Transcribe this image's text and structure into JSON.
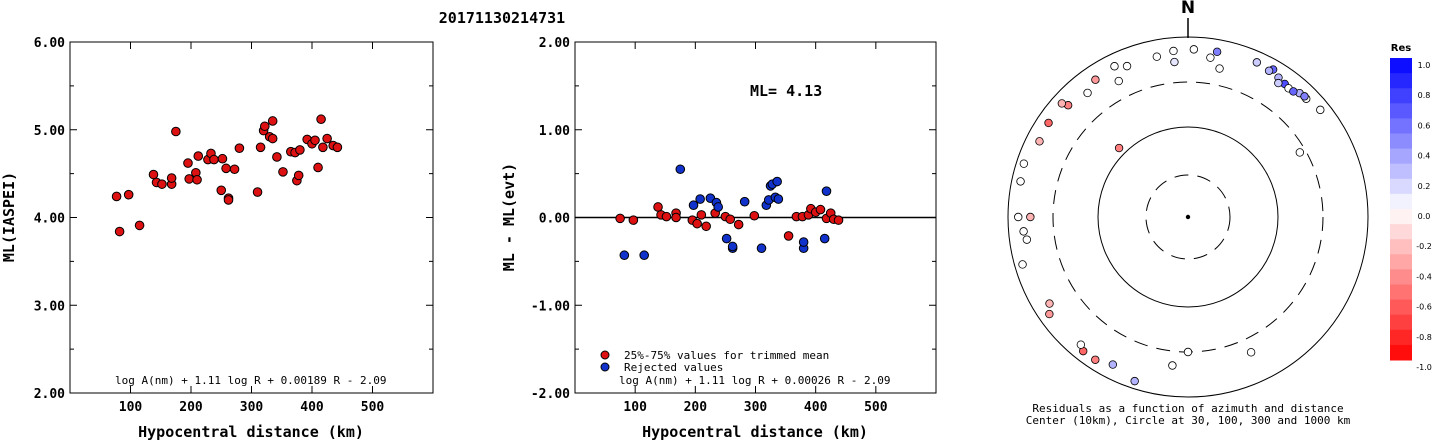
{
  "page": {
    "title": "20171130214731"
  },
  "chart_data": [
    {
      "type": "scatter",
      "id": "ml-vs-distance",
      "xlabel": "Hypocentral distance (km)",
      "ylabel": "ML(IASPEI)",
      "xlim": [
        0,
        600
      ],
      "ylim": [
        2.0,
        6.0
      ],
      "xticks": [
        "100",
        "200",
        "300",
        "400",
        "500"
      ],
      "yticks": [
        "2.00",
        "3.00",
        "4.00",
        "5.00",
        "6.00"
      ],
      "formula": "log A(nm) + 1.11 log R + 0.00189 R - 2.09",
      "marker_color": "#dd1111",
      "points": [
        [
          77,
          4.24
        ],
        [
          82,
          3.84
        ],
        [
          97,
          4.26
        ],
        [
          115,
          3.91
        ],
        [
          138,
          4.49
        ],
        [
          143,
          4.4
        ],
        [
          152,
          4.38
        ],
        [
          168,
          4.38
        ],
        [
          168,
          4.45
        ],
        [
          175,
          4.98
        ],
        [
          195,
          4.62
        ],
        [
          197,
          4.44
        ],
        [
          208,
          4.51
        ],
        [
          210,
          4.43
        ],
        [
          212,
          4.7
        ],
        [
          228,
          4.66
        ],
        [
          233,
          4.73
        ],
        [
          238,
          4.66
        ],
        [
          250,
          4.31
        ],
        [
          252,
          4.67
        ],
        [
          258,
          4.56
        ],
        [
          262,
          4.22
        ],
        [
          262,
          4.2
        ],
        [
          272,
          4.55
        ],
        [
          280,
          4.79
        ],
        [
          310,
          4.29
        ],
        [
          315,
          4.8
        ],
        [
          320,
          4.99
        ],
        [
          322,
          5.04
        ],
        [
          330,
          4.92
        ],
        [
          335,
          5.1
        ],
        [
          335,
          4.9
        ],
        [
          342,
          4.69
        ],
        [
          352,
          4.52
        ],
        [
          365,
          4.75
        ],
        [
          372,
          4.74
        ],
        [
          375,
          4.42
        ],
        [
          378,
          4.48
        ],
        [
          380,
          4.77
        ],
        [
          392,
          4.89
        ],
        [
          400,
          4.84
        ],
        [
          405,
          4.88
        ],
        [
          410,
          4.57
        ],
        [
          415,
          5.12
        ],
        [
          418,
          4.8
        ],
        [
          425,
          4.9
        ],
        [
          435,
          4.82
        ],
        [
          442,
          4.8
        ]
      ]
    },
    {
      "type": "scatter",
      "id": "residual-vs-distance",
      "xlabel": "Hypocentral distance (km)",
      "ylabel": "ML - ML(evt)",
      "xlim": [
        0,
        600
      ],
      "ylim": [
        -2.0,
        2.0
      ],
      "xticks": [
        "100",
        "200",
        "300",
        "400",
        "500"
      ],
      "yticks": [
        "-2.00",
        "-1.00",
        "0.00",
        "1.00",
        "2.00"
      ],
      "annotation": "ML= 4.13",
      "legend": [
        {
          "label": "25%-75% values for trimmed mean",
          "color": "#dd1111"
        },
        {
          "label": "Rejected values",
          "color": "#1133cc"
        }
      ],
      "formula": "log A(nm) + 1.11 log R + 0.00026 R - 2.09",
      "series": [
        {
          "name": "25%-75% values for trimmed mean",
          "color": "#dd1111",
          "points": [
            [
              75,
              -0.01
            ],
            [
              97,
              -0.03
            ],
            [
              138,
              0.12
            ],
            [
              143,
              0.03
            ],
            [
              152,
              0.01
            ],
            [
              168,
              0.05
            ],
            [
              168,
              0.0
            ],
            [
              195,
              -0.03
            ],
            [
              203,
              -0.07
            ],
            [
              210,
              0.03
            ],
            [
              218,
              -0.1
            ],
            [
              233,
              0.05
            ],
            [
              250,
              0.01
            ],
            [
              258,
              -0.02
            ],
            [
              272,
              -0.08
            ],
            [
              298,
              0.02
            ],
            [
              355,
              -0.21
            ],
            [
              368,
              0.01
            ],
            [
              378,
              0.01
            ],
            [
              388,
              0.03
            ],
            [
              392,
              0.1
            ],
            [
              400,
              0.06
            ],
            [
              408,
              0.09
            ],
            [
              418,
              -0.01
            ],
            [
              425,
              0.05
            ],
            [
              430,
              -0.02
            ],
            [
              438,
              -0.03
            ]
          ]
        },
        {
          "name": "Rejected values",
          "color": "#1133cc",
          "points": [
            [
              82,
              -0.43
            ],
            [
              115,
              -0.43
            ],
            [
              175,
              0.55
            ],
            [
              197,
              0.14
            ],
            [
              208,
              0.21
            ],
            [
              225,
              0.22
            ],
            [
              235,
              0.17
            ],
            [
              238,
              0.12
            ],
            [
              252,
              -0.24
            ],
            [
              262,
              -0.35
            ],
            [
              262,
              -0.33
            ],
            [
              282,
              0.18
            ],
            [
              310,
              -0.35
            ],
            [
              318,
              0.14
            ],
            [
              322,
              0.2
            ],
            [
              325,
              0.36
            ],
            [
              328,
              0.38
            ],
            [
              333,
              0.23
            ],
            [
              336,
              0.41
            ],
            [
              338,
              0.21
            ],
            [
              380,
              -0.35
            ],
            [
              380,
              -0.28
            ],
            [
              415,
              -0.24
            ],
            [
              418,
              0.3
            ]
          ]
        }
      ]
    },
    {
      "type": "polar-scatter",
      "id": "azimuth-residuals",
      "north_label": "N",
      "caption_line1": "Residuals as a function of azimuth and distance",
      "caption_line2": "Center (10km), Circle at 30, 100, 300 and 1000 km",
      "colorbar": {
        "title": "Res",
        "ticks": [
          "1.0",
          "0.8",
          "0.6",
          "0.4",
          "0.2",
          "0.0",
          "-0.2",
          "-0.4",
          "-0.6",
          "-0.8",
          "-1.0"
        ],
        "max_color": "#0000ff",
        "min_color": "#ff0000"
      },
      "stations": [
        {
          "az": 180,
          "dist": 300,
          "res": 0.0
        },
        {
          "az": 155,
          "dist": 440,
          "res": 0.0
        },
        {
          "az": 60,
          "dist": 260,
          "res": 0.0
        },
        {
          "az": 315,
          "dist": 120,
          "res": -0.5
        },
        {
          "az": 349,
          "dist": 640,
          "res": 0.0
        },
        {
          "az": 355,
          "dist": 520,
          "res": 0.1
        },
        {
          "az": 8,
          "dist": 600,
          "res": 0.0
        },
        {
          "az": 12,
          "dist": 470,
          "res": 0.0
        },
        {
          "az": 2,
          "dist": 720,
          "res": 0.0
        },
        {
          "az": 10,
          "dist": 720,
          "res": 0.5
        },
        {
          "az": -5,
          "dist": 700,
          "res": 0.0
        },
        {
          "az": -22,
          "dist": 630,
          "res": 0.0
        },
        {
          "az": -27,
          "dist": 480,
          "res": 0.0
        },
        {
          "az": -26,
          "dist": 720,
          "res": 0.0
        },
        {
          "az": -34,
          "dist": 680,
          "res": -0.4
        },
        {
          "az": -39,
          "dist": 580,
          "res": 0.0
        },
        {
          "az": -47,
          "dist": 650,
          "res": -0.5
        },
        {
          "az": -48,
          "dist": 760,
          "res": -0.3
        },
        {
          "az": -56,
          "dist": 730,
          "res": -0.6
        },
        {
          "az": -63,
          "dist": 700,
          "res": -0.3
        },
        {
          "az": -72,
          "dist": 820,
          "res": 0.0
        },
        {
          "az": -78,
          "dist": 790,
          "res": 0.0
        },
        {
          "az": -90,
          "dist": 760,
          "res": 0.0
        },
        {
          "az": -95,
          "dist": 670,
          "res": 0.0
        },
        {
          "az": -98,
          "dist": 630,
          "res": 0.0
        },
        {
          "az": -106,
          "dist": 810,
          "res": 0.0
        },
        {
          "az": -90,
          "dist": 550,
          "res": -0.3
        },
        {
          "az": -125,
          "dist": 750,
          "res": -0.4
        },
        {
          "az": -122,
          "dist": 640,
          "res": -0.3
        },
        {
          "az": -142,
          "dist": 770,
          "res": -0.6
        },
        {
          "az": -140,
          "dist": 700,
          "res": 0.0
        },
        {
          "az": -147,
          "dist": 770,
          "res": -0.5
        },
        {
          "az": -162,
          "dist": 820,
          "res": 0.3
        },
        {
          "az": -153,
          "dist": 680,
          "res": 0.3
        },
        {
          "az": -174,
          "dist": 440,
          "res": 0.0
        },
        {
          "az": 24,
          "dist": 750,
          "res": 0.2
        },
        {
          "az": 30,
          "dist": 770,
          "res": 0.6
        },
        {
          "az": 29,
          "dist": 710,
          "res": 0.3
        },
        {
          "az": 33,
          "dist": 690,
          "res": 0.3
        },
        {
          "az": 36,
          "dist": 660,
          "res": 0.7
        },
        {
          "az": 38,
          "dist": 640,
          "res": 0.0
        },
        {
          "az": 34,
          "dist": 610,
          "res": 0.2
        },
        {
          "az": 42,
          "dist": 700,
          "res": 0.3
        },
        {
          "az": 45,
          "dist": 710,
          "res": 0.0
        },
        {
          "az": 51,
          "dist": 770,
          "res": 0.0
        },
        {
          "az": 44,
          "dist": 720,
          "res": 0.5
        },
        {
          "az": 40,
          "dist": 650,
          "res": 0.6
        }
      ]
    }
  ]
}
